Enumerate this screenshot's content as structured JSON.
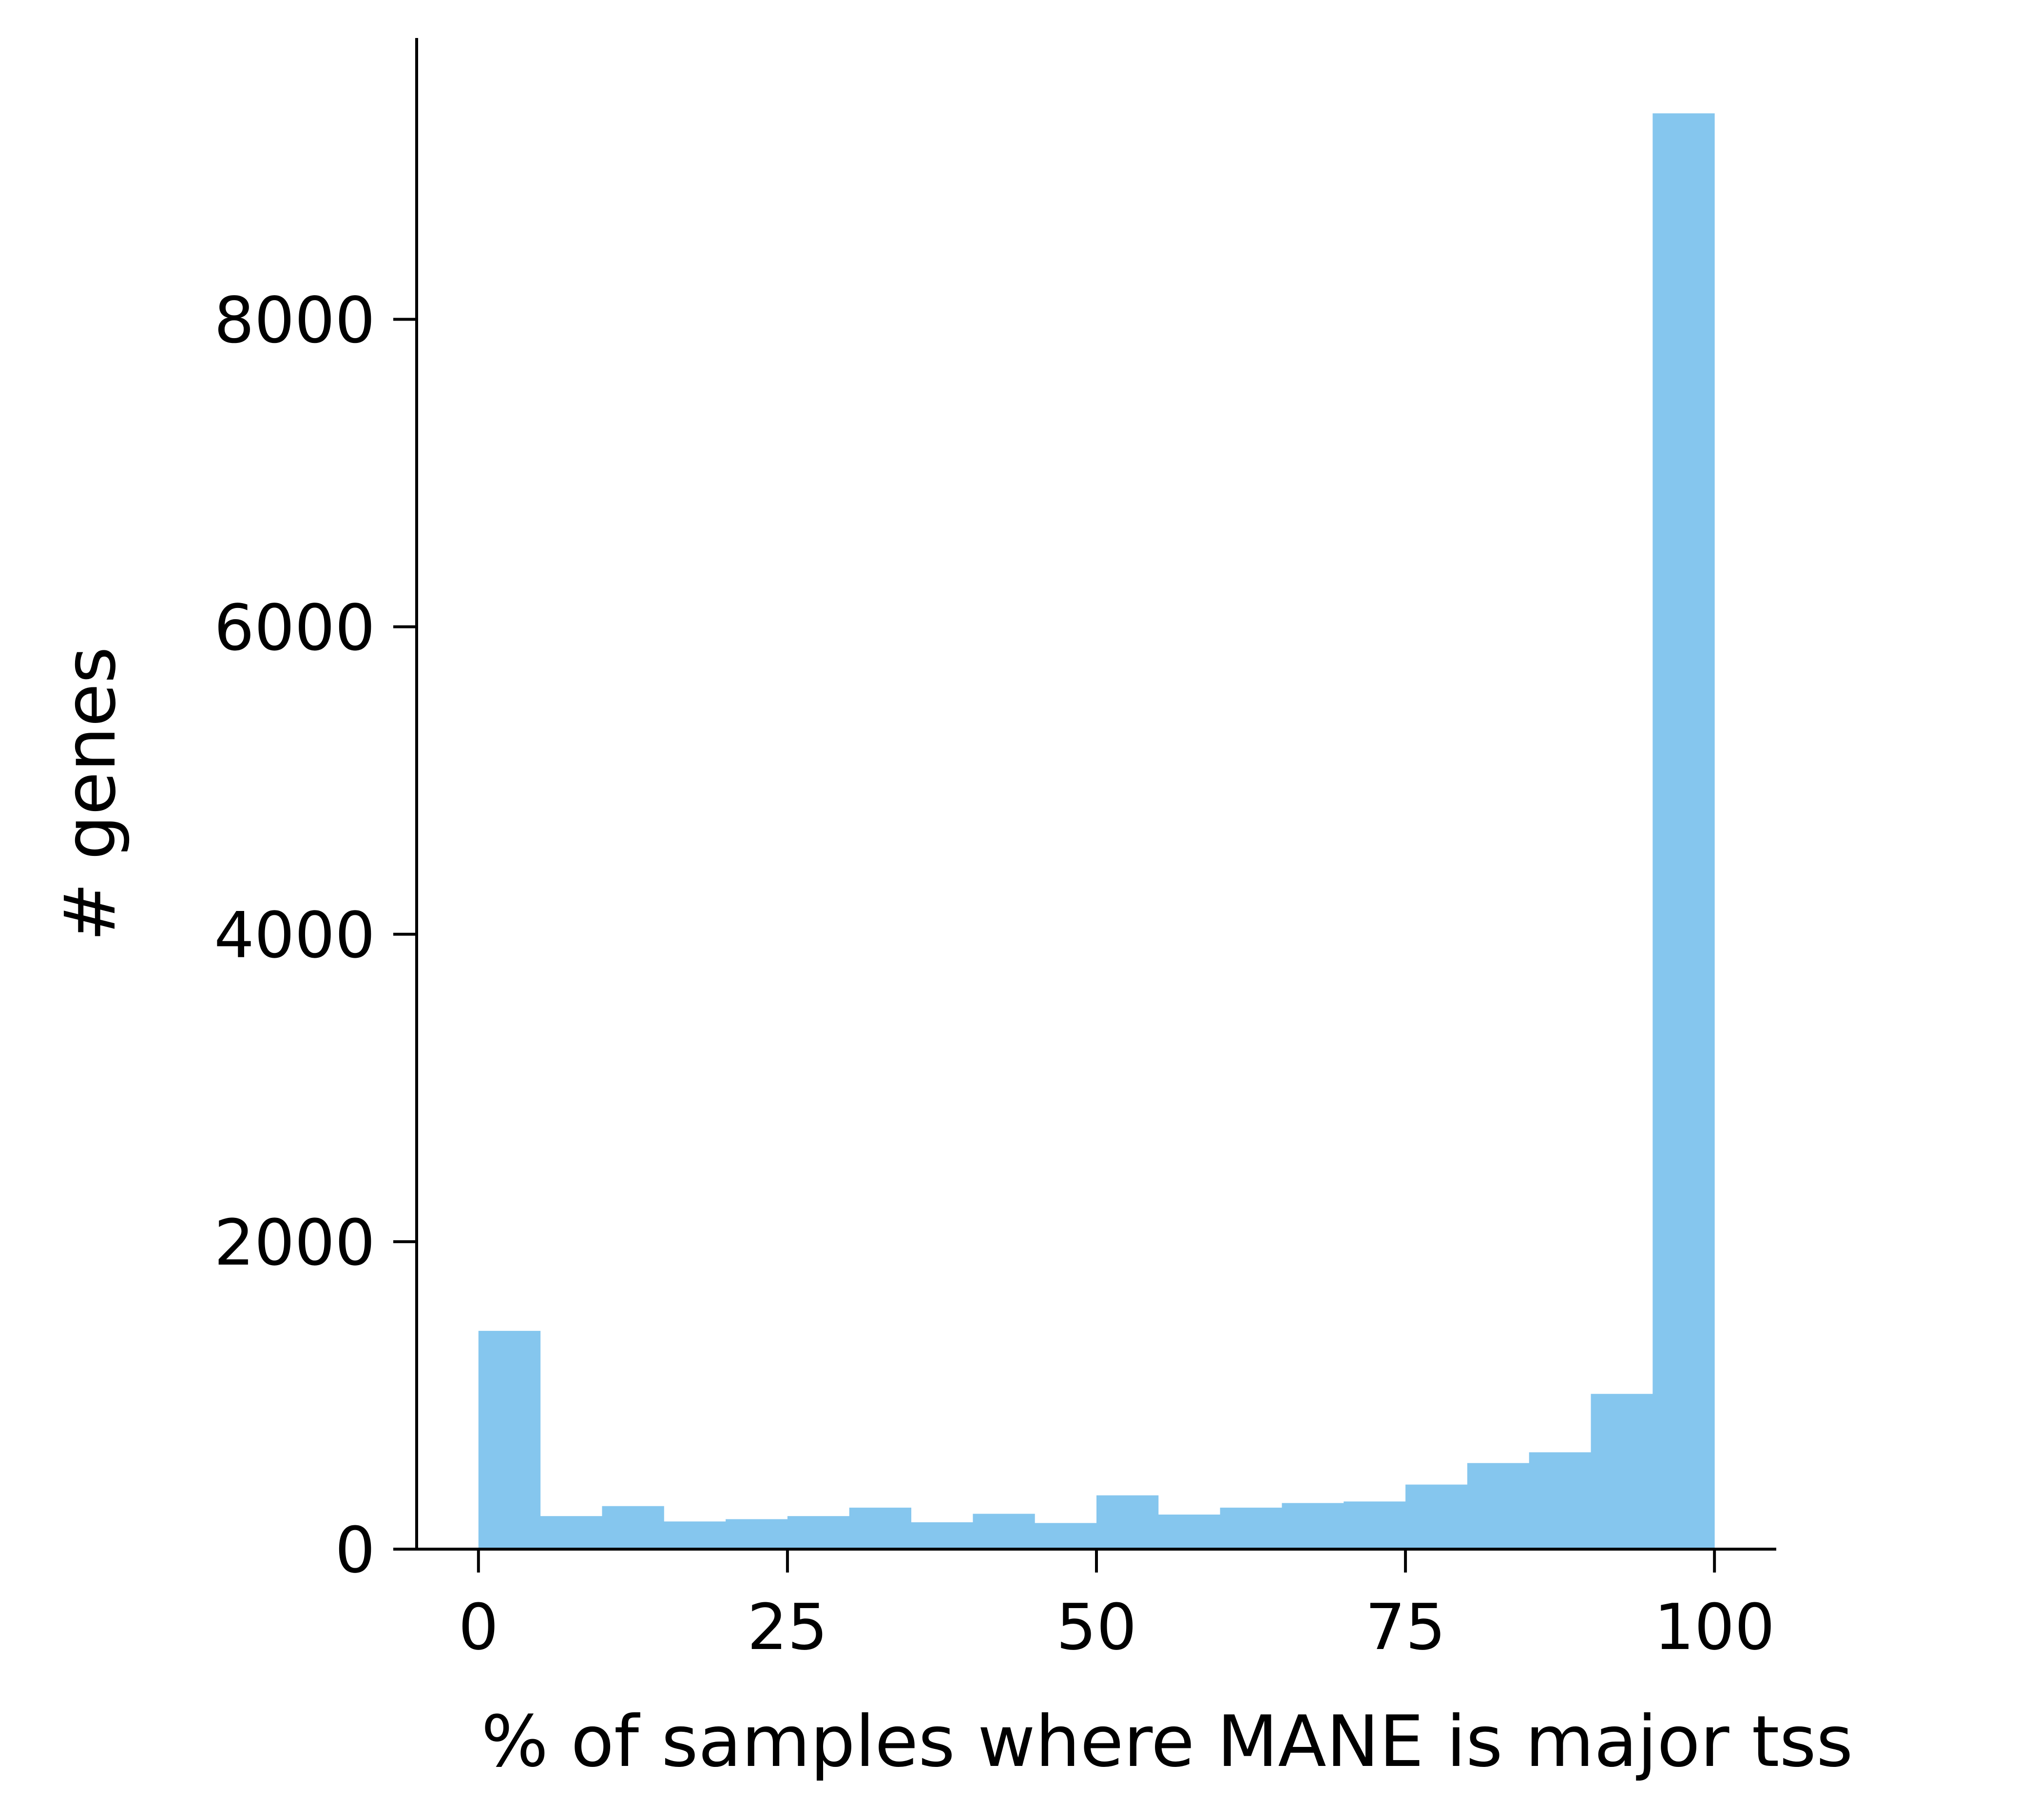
{
  "chart_data": {
    "type": "bar",
    "subtype": "histogram",
    "title": "",
    "xlabel": "% of samples where MANE is major tss",
    "ylabel": "# genes",
    "xlim": [
      -5,
      105
    ],
    "ylim": [
      0,
      9830
    ],
    "x_ticks": [
      0,
      25,
      50,
      75,
      100
    ],
    "y_ticks": [
      0,
      2000,
      4000,
      6000,
      8000
    ],
    "bin_width": 5,
    "bin_starts": [
      0,
      5,
      10,
      15,
      20,
      25,
      30,
      35,
      40,
      45,
      50,
      55,
      60,
      65,
      70,
      75,
      80,
      85,
      90,
      95
    ],
    "values": [
      1420,
      215,
      280,
      180,
      195,
      215,
      270,
      175,
      230,
      170,
      350,
      225,
      270,
      300,
      310,
      420,
      560,
      630,
      1010,
      9340
    ],
    "bar_color": "#85C6EE",
    "grid": false,
    "legend": "none",
    "spines": "left-bottom"
  }
}
